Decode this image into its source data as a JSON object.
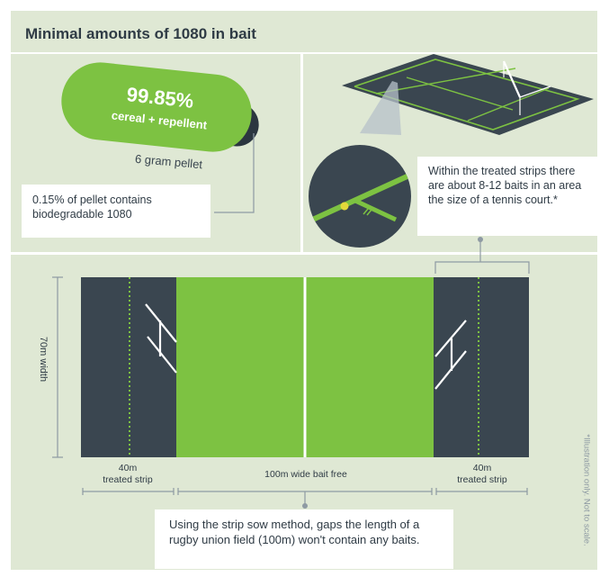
{
  "title": "Minimal amounts of 1080 in bait",
  "pellet": {
    "percent": "99.85%",
    "composition": "cereal + repellent",
    "size_label": "6 gram pellet",
    "callout": "0.15% of pellet contains biodegradable 1080"
  },
  "tennis": {
    "callout": "Within the treated strips there are about 8-12 baits in an area the size of a tennis court.*"
  },
  "field": {
    "width_label": "70m width",
    "left_strip_size": "40m",
    "left_strip_label": "treated strip",
    "middle_label": "100m wide bait free",
    "right_strip_size": "40m",
    "right_strip_label": "treated strip",
    "callout": "Using the strip sow method, gaps the length of a rugby union field (100m) won't contain any baits."
  },
  "disclaimer": "*Illustration only. Not to scale.",
  "colors": {
    "panel": "#dfe8d4",
    "green": "#7dc242",
    "dark": "#3a4650",
    "line": "#8e9aa3",
    "text": "#2f3b45"
  }
}
